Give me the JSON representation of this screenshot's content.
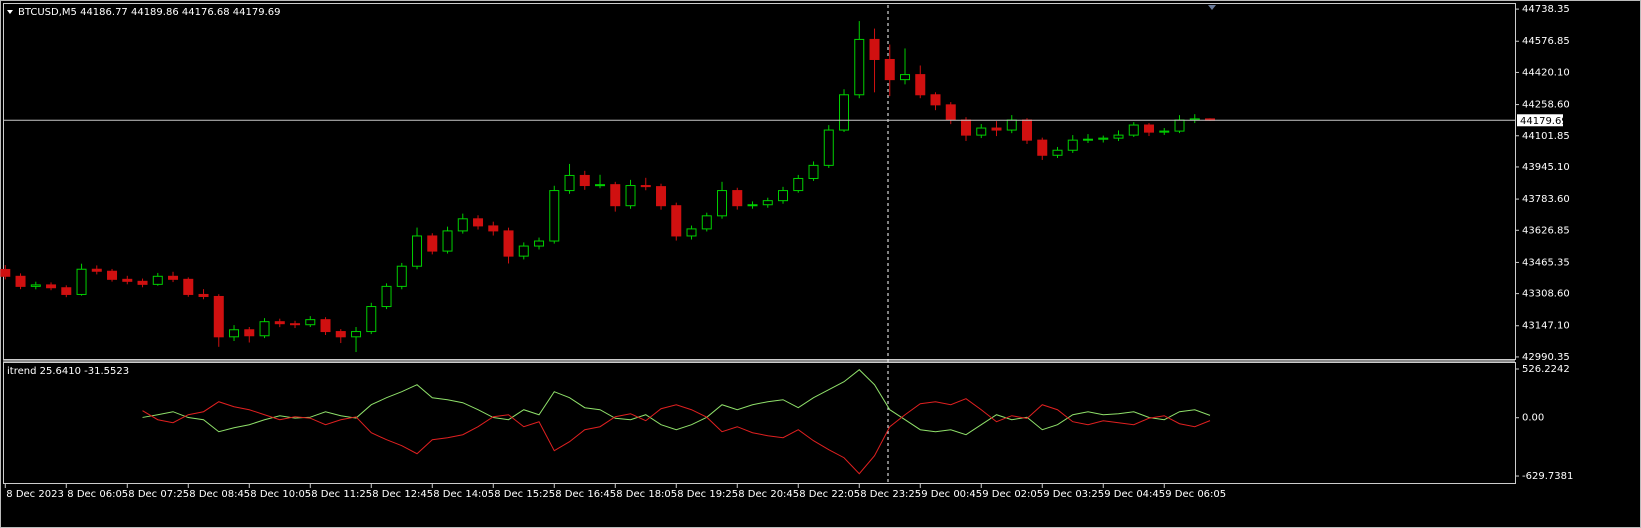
{
  "chart_data": {
    "type": "candlestick",
    "title": "BTCUSD,M5  44186.77 44189.86 44176.68 44179.69",
    "up_color": "#00d000",
    "down_color": "#d01010",
    "x": [
      "8 Dec 04:45",
      "8 Dec 05:05",
      "8 Dec 05:25",
      "8 Dec 05:45",
      "8 Dec 06:05",
      "8 Dec 06:25",
      "8 Dec 06:45",
      "8 Dec 07:05",
      "8 Dec 07:25",
      "8 Dec 07:45",
      "8 Dec 08:05",
      "8 Dec 08:25",
      "8 Dec 08:45",
      "8 Dec 09:05",
      "8 Dec 09:25",
      "8 Dec 09:45",
      "8 Dec 10:05",
      "8 Dec 10:25",
      "8 Dec 10:45",
      "8 Dec 11:05",
      "8 Dec 11:25",
      "8 Dec 11:45",
      "8 Dec 12:05",
      "8 Dec 12:25",
      "8 Dec 12:45",
      "8 Dec 13:05",
      "8 Dec 13:25",
      "8 Dec 13:45",
      "8 Dec 14:05",
      "8 Dec 14:25",
      "8 Dec 14:45",
      "8 Dec 15:05",
      "8 Dec 15:25",
      "8 Dec 15:45",
      "8 Dec 16:05",
      "8 Dec 16:25",
      "8 Dec 16:45",
      "8 Dec 17:05",
      "8 Dec 17:25",
      "8 Dec 17:45",
      "8 Dec 18:05",
      "8 Dec 18:25",
      "8 Dec 18:45",
      "8 Dec 19:05",
      "8 Dec 19:25",
      "8 Dec 19:45",
      "8 Dec 20:05",
      "8 Dec 20:25",
      "8 Dec 20:45",
      "8 Dec 21:05",
      "8 Dec 21:25",
      "8 Dec 21:45",
      "8 Dec 22:05",
      "8 Dec 22:25",
      "8 Dec 22:45",
      "8 Dec 23:05",
      "8 Dec 23:25",
      "8 Dec 23:45",
      "9 Dec 00:05",
      "9 Dec 00:25",
      "9 Dec 00:45",
      "9 Dec 01:05",
      "9 Dec 01:25",
      "9 Dec 01:45",
      "9 Dec 02:05",
      "9 Dec 02:25",
      "9 Dec 02:45",
      "9 Dec 03:05",
      "9 Dec 03:25",
      "9 Dec 03:45",
      "9 Dec 04:05",
      "9 Dec 04:25",
      "9 Dec 04:45",
      "9 Dec 05:05",
      "9 Dec 05:25",
      "9 Dec 05:45",
      "9 Dec 06:05",
      "9 Dec 06:25",
      "9 Dec 06:45",
      "9 Dec 07:05"
    ],
    "open": [
      43430.0,
      43395.6,
      43344.9,
      43352.3,
      43338.1,
      43304.4,
      43431.1,
      43421.0,
      43380.4,
      43370.4,
      43355.1,
      43395.6,
      43380.4,
      43304.4,
      43294.2,
      43091.5,
      43127.0,
      43096.8,
      43167.5,
      43157.4,
      43152.3,
      43177.7,
      43117.9,
      43091.5,
      43117.9,
      43243.6,
      43344.9,
      43446.3,
      43598.3,
      43522.3,
      43623.7,
      43684.5,
      43648.8,
      43623.7,
      43497.0,
      43547.6,
      43572.9,
      43826.4,
      43902.4,
      43851.7,
      43856.1,
      43750.4,
      43851.7,
      43846.3,
      43750.4,
      43598.3,
      43633.8,
      43699.5,
      43826.4,
      43750.4,
      43755.2,
      43775.7,
      43826.4,
      43887.2,
      43953.1,
      44130.5,
      44307.8,
      44586.0,
      44485.2,
      44383.9,
      44409.2,
      44307.8,
      44257.2,
      44181.1,
      44105.1,
      44140.6,
      44130.5,
      44181.1,
      44079.8,
      44003.8,
      44029.1,
      44079.8,
      44084.5,
      44089.9,
      44105.1,
      44155.8,
      44120.1,
      44125.3,
      44181.1,
      44186.77
    ],
    "high": [
      43452.1,
      43410.3,
      43368.5,
      43365.0,
      43350.2,
      43458.9,
      43450.4,
      43432.7,
      43398.1,
      43384.2,
      43412.6,
      43418.3,
      43390.2,
      43330.9,
      43305.6,
      43150.2,
      43140.8,
      43185.3,
      43182.6,
      43172.0,
      43195.4,
      43190.1,
      43130.4,
      43140.8,
      43262.4,
      43360.2,
      43462.7,
      43640.5,
      43612.0,
      43645.2,
      43710.6,
      43702.3,
      43670.1,
      43640.0,
      43565.8,
      43590.2,
      43850.6,
      43960.3,
      43925.7,
      43905.8,
      43870.3,
      43880.2,
      43890.5,
      43860.9,
      43765.8,
      43650.7,
      43715.3,
      43870.4,
      43840.6,
      43772.1,
      43790.6,
      43845.2,
      43905.1,
      43972.8,
      44155.3,
      44335.6,
      44678.2,
      44640.5,
      44560.3,
      44540.7,
      44455.0,
      44320.4,
      44270.9,
      44195.2,
      44160.8,
      44175.4,
      44205.7,
      44190.3,
      44092.5,
      44045.6,
      44105.3,
      44110.2,
      44102.8,
      44128.6,
      44170.2,
      44165.3,
      44140.7,
      44205.4,
      44210.3,
      44189.86
    ],
    "low": [
      43380.2,
      43330.8,
      43330.1,
      43325.7,
      43290.6,
      43298.3,
      43405.2,
      43368.9,
      43355.6,
      43340.3,
      43348.0,
      43366.5,
      43292.7,
      43280.1,
      43041.3,
      43070.4,
      43062.9,
      43085.1,
      43140.2,
      43135.5,
      43140.7,
      43100.6,
      43060.2,
      43015.0,
      43105.3,
      43230.8,
      43330.4,
      43430.9,
      43505.8,
      43510.1,
      43610.2,
      43630.5,
      43600.4,
      43460.2,
      43480.3,
      43530.5,
      43560.0,
      43810.2,
      43830.1,
      43838.4,
      43720.6,
      43735.1,
      43828.0,
      43730.2,
      43575.1,
      43580.4,
      43620.9,
      43685.2,
      43730.8,
      43735.3,
      43740.0,
      43760.3,
      43815.7,
      43875.0,
      43940.2,
      44120.8,
      44290.4,
      44320.1,
      44300.9,
      44360.2,
      44290.6,
      44230.5,
      44160.3,
      44075.6,
      44090.3,
      44100.2,
      44115.0,
      44060.8,
      43980.4,
      43990.1,
      44015.7,
      44065.4,
      44068.0,
      44075.3,
      44095.8,
      44100.5,
      44105.9,
      44115.2,
      44165.8,
      44176.68
    ],
    "close": [
      43395.6,
      43344.9,
      43352.3,
      43338.1,
      43304.4,
      43431.1,
      43421.0,
      43380.4,
      43370.4,
      43355.1,
      43395.6,
      43380.4,
      43304.4,
      43294.2,
      43091.5,
      43127.0,
      43096.8,
      43167.5,
      43157.4,
      43152.3,
      43177.7,
      43117.9,
      43091.5,
      43117.9,
      43243.6,
      43344.9,
      43446.3,
      43598.3,
      43522.3,
      43623.7,
      43684.5,
      43648.8,
      43623.7,
      43497.0,
      43547.6,
      43572.9,
      43826.4,
      43902.4,
      43851.7,
      43856.1,
      43750.4,
      43851.7,
      43846.3,
      43750.4,
      43598.3,
      43633.8,
      43699.5,
      43826.4,
      43750.4,
      43755.2,
      43775.7,
      43826.4,
      43887.2,
      43953.1,
      44130.5,
      44307.8,
      44586.0,
      44485.2,
      44383.9,
      44409.2,
      44307.8,
      44257.2,
      44181.1,
      44105.1,
      44140.6,
      44130.5,
      44181.1,
      44079.8,
      44003.8,
      44029.1,
      44079.8,
      44084.5,
      44089.9,
      44105.1,
      44155.8,
      44120.1,
      44125.3,
      44181.1,
      44186.77,
      44179.69
    ],
    "xlim": [
      "8 Dec 04:42",
      "9 Dec 13:45"
    ],
    "xticks": [
      {
        "value": "8 Dec 04:45",
        "label": "8 Dec 2023"
      },
      "8 Dec 06:05",
      "8 Dec 07:25",
      "8 Dec 08:45",
      "8 Dec 10:05",
      "8 Dec 11:25",
      "8 Dec 12:45",
      "8 Dec 14:05",
      "8 Dec 15:25",
      "8 Dec 16:45",
      "8 Dec 18:05",
      "8 Dec 19:25",
      "8 Dec 20:45",
      "8 Dec 22:05",
      "8 Dec 23:25",
      "9 Dec 00:45",
      "9 Dec 02:05",
      "9 Dec 03:25",
      "9 Dec 04:45",
      "9 Dec 06:05"
    ],
    "ylim": [
      42980,
      44764
    ],
    "yticks": [
      44738.35,
      44576.85,
      {
        "value": 44420.1,
        "label": "44420.10"
      },
      {
        "value": 44258.6,
        "label": "44258.60"
      },
      44101.85,
      {
        "value": 43945.1,
        "label": "43945.10"
      },
      {
        "value": 43783.6,
        "label": "43783.60"
      },
      43626.85,
      43465.35,
      {
        "value": 43308.6,
        "label": "43308.60"
      },
      {
        "value": 43147.1,
        "label": "43147.10"
      },
      42990.35
    ],
    "indicator": {
      "type": "line",
      "title": "itrend 25.6410 -31.5523",
      "ylim": [
        -705,
        591
      ],
      "yticks": [
        526.2242,
        {
          "value": 0,
          "label": "0.00"
        },
        -629.7381
      ],
      "series": [
        {
          "color": "#8fe06a",
          "values": [
            null,
            null,
            null,
            null,
            null,
            null,
            null,
            null,
            null,
            3.2,
            32.4,
            64.8,
            2.1,
            -21.6,
            -151.2,
            -108.0,
            -75.6,
            -21.6,
            21.6,
            -4.3,
            5.8,
            64.8,
            21.6,
            -3.7,
            140.4,
            216.0,
            280.8,
            356.4,
            216.0,
            194.4,
            162.0,
            86.4,
            1.9,
            -21.6,
            86.4,
            32.4,
            280.8,
            216.0,
            108.0,
            86.4,
            -6.2,
            -21.6,
            32.4,
            -75.6,
            -129.6,
            -75.6,
            4.5,
            140.4,
            86.4,
            140.4,
            172.8,
            194.4,
            108.0,
            216.0,
            302.4,
            388.8,
            518.4,
            356.4,
            86.4,
            -21.6,
            -129.6,
            -151.2,
            -129.6,
            -183.6,
            -75.6,
            32.4,
            -21.6,
            4.9,
            -129.6,
            -75.6,
            32.4,
            64.8,
            32.4,
            43.2,
            64.8,
            2.7,
            -21.6,
            64.8,
            86.4,
            25.641
          ]
        },
        {
          "color": "#e02020",
          "values": [
            null,
            null,
            null,
            null,
            null,
            null,
            null,
            null,
            null,
            75.6,
            -21.6,
            -54.1,
            32.4,
            64.8,
            172.8,
            118.8,
            86.4,
            32.4,
            -21.6,
            10.8,
            -5.4,
            -75.6,
            -21.6,
            8.6,
            -162.0,
            -237.6,
            -302.4,
            -388.8,
            -237.6,
            -216.0,
            -183.6,
            -97.2,
            10.8,
            32.4,
            -97.2,
            -43.2,
            -356.4,
            -259.2,
            -129.6,
            -97.2,
            10.8,
            43.2,
            -32.4,
            97.2,
            140.4,
            86.4,
            5.4,
            -151.2,
            -97.2,
            -162.0,
            -194.4,
            -216.0,
            -129.6,
            -248.4,
            -345.6,
            -432.0,
            -604.8,
            -410.4,
            -97.2,
            32.4,
            151.2,
            172.8,
            140.4,
            205.2,
            86.4,
            -43.2,
            21.6,
            -8.1,
            140.4,
            86.4,
            -43.2,
            -75.6,
            -32.4,
            -54.0,
            -75.6,
            -5.4,
            21.6,
            -64.8,
            -97.2,
            -31.5523
          ]
        }
      ]
    }
  }
}
